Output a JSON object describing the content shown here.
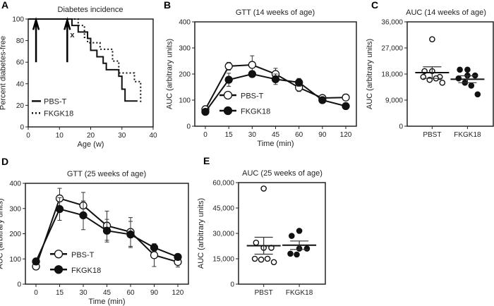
{
  "chart_data": [
    {
      "panel": "A",
      "type": "line",
      "title": "Diabetes incidence",
      "xlabel": "Age (w)",
      "ylabel": "Percent diabetes-free",
      "xlim": [
        0,
        40
      ],
      "ylim": [
        0,
        100
      ],
      "xticks": [
        0,
        10,
        20,
        30,
        40
      ],
      "yticks": [
        0,
        20,
        40,
        60,
        80,
        100
      ],
      "arrows": [
        2.5,
        12.5
      ],
      "arrow_label": "x",
      "legend": "bottom-left",
      "series": [
        {
          "name": "PBS-T",
          "style": "solid",
          "x": [
            0,
            14,
            16,
            19,
            20,
            22,
            24,
            25,
            29,
            30,
            31,
            35
          ],
          "y": [
            100,
            94,
            88,
            82,
            71,
            65,
            59,
            53,
            47,
            35,
            24,
            24
          ]
        },
        {
          "name": "FKGK18",
          "style": "dotted",
          "x": [
            0,
            16,
            18,
            19,
            23,
            27,
            29,
            34,
            36,
            36
          ],
          "y": [
            100,
            94,
            83,
            78,
            72,
            61,
            50,
            42,
            42,
            22
          ]
        }
      ]
    },
    {
      "panel": "B",
      "type": "line",
      "title": "GTT (14 weeks of age)",
      "xlabel": "Time (min)",
      "ylabel": "AUC (arbitrary units)",
      "categories": [
        "0",
        "15",
        "30",
        "45",
        "60",
        "90",
        "120"
      ],
      "ylim": [
        0,
        400
      ],
      "yticks": [
        0,
        100,
        200,
        300,
        400
      ],
      "legend": "bottom-left",
      "series": [
        {
          "name": "PBS-T",
          "marker": "open",
          "values": [
            65,
            230,
            235,
            200,
            148,
            108,
            110
          ],
          "errors": [
            5,
            15,
            35,
            22,
            15,
            5,
            5
          ]
        },
        {
          "name": "FKGK18",
          "marker": "filled",
          "values": [
            55,
            178,
            200,
            180,
            168,
            100,
            77
          ],
          "errors": [
            5,
            25,
            12,
            20,
            15,
            5,
            5
          ]
        }
      ]
    },
    {
      "panel": "C",
      "type": "scatter",
      "title": "AUC (14 weeks of age)",
      "ylabel": "AUC (arbitrary units)",
      "categories": [
        "PBST",
        "FKGK18"
      ],
      "ylim": [
        0,
        36000
      ],
      "yticks": [
        "0",
        "9,000",
        "18,000",
        "27,000",
        "36,000"
      ],
      "groups": [
        {
          "name": "PBST",
          "marker": "open",
          "values": [
            30000,
            19000,
            19000,
            17000,
            17000,
            16000,
            16500,
            15000
          ],
          "mean": 18500,
          "sem": 2000
        },
        {
          "name": "FKGK18",
          "marker": "filled",
          "values": [
            19500,
            19500,
            17500,
            17500,
            16500,
            15000,
            14000,
            11000
          ],
          "mean": 16200,
          "sem": 1200
        }
      ]
    },
    {
      "panel": "D",
      "type": "line",
      "title": "GTT (25 weeks of age)",
      "xlabel": "Time (min)",
      "ylabel": "AUC (arbitrary units)",
      "categories": [
        "0",
        "15",
        "30",
        "45",
        "60",
        "90",
        "120"
      ],
      "ylim": [
        0,
        400
      ],
      "yticks": [
        0,
        100,
        200,
        300,
        400
      ],
      "legend": "bottom-left",
      "series": [
        {
          "name": "PBS-T",
          "marker": "open",
          "values": [
            70,
            340,
            312,
            232,
            207,
            115,
            88
          ],
          "errors": [
            10,
            40,
            52,
            58,
            57,
            45,
            20
          ]
        },
        {
          "name": "FKGK18",
          "marker": "filled",
          "values": [
            90,
            298,
            273,
            212,
            197,
            145,
            108
          ],
          "errors": [
            10,
            45,
            57,
            45,
            52,
            15,
            10
          ]
        }
      ]
    },
    {
      "panel": "E",
      "type": "scatter",
      "title": "AUC (25 weeks of age)",
      "ylabel": "AUC (arbitrary units)",
      "categories": [
        "PBST",
        "FKGK18"
      ],
      "ylim": [
        0,
        60000
      ],
      "yticks": [
        "0",
        "15,000",
        "30,000",
        "45,000",
        "60,000"
      ],
      "groups": [
        {
          "name": "PBST",
          "marker": "open",
          "values": [
            56500,
            24500,
            21500,
            21500,
            15000,
            14500,
            15000,
            13000
          ],
          "mean": 22700,
          "sem": 5000
        },
        {
          "name": "FKGK18",
          "marker": "filled",
          "values": [
            31500,
            28500,
            21000,
            21000,
            18000,
            17500
          ],
          "mean": 23000,
          "sem": 2500
        }
      ]
    }
  ]
}
